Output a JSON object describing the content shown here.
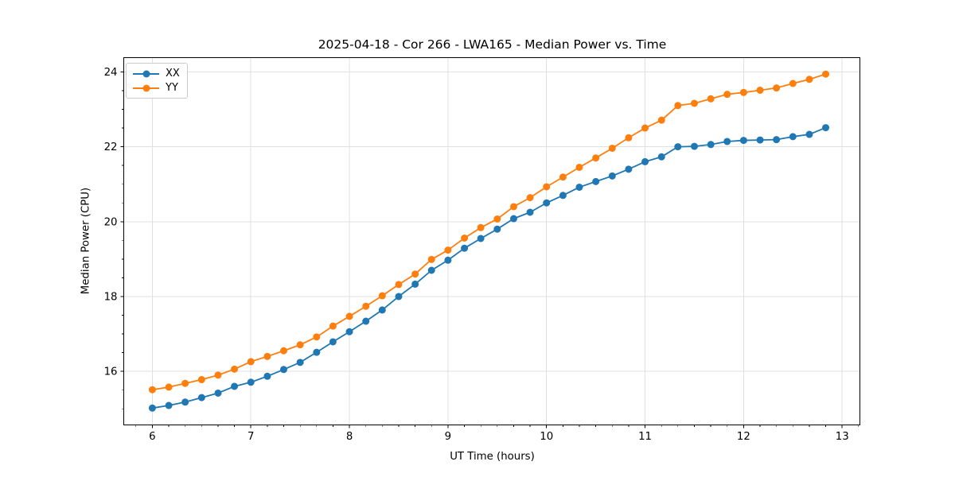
{
  "figure": {
    "background": "#ffffff"
  },
  "chart_data": {
    "type": "line",
    "title": "2025-04-18 - Cor 266 - LWA165 - Median Power vs. Time",
    "xlabel": "UT Time (hours)",
    "ylabel": "Median Power (CPU)",
    "xlim": [
      5.71,
      13.18
    ],
    "ylim": [
      14.57,
      24.38
    ],
    "xticks": [
      6,
      7,
      8,
      9,
      10,
      11,
      12,
      13
    ],
    "yticks": [
      16,
      18,
      20,
      22,
      24
    ],
    "x_minor_step": 0.16667,
    "y_minor_step": 0.5,
    "grid": "major",
    "grid_color": "#e0e0e0",
    "axis_color": "#000000",
    "legend": {
      "position": "upper-left",
      "entries": [
        "XX",
        "YY"
      ]
    },
    "x": [
      6.0,
      6.167,
      6.333,
      6.5,
      6.667,
      6.833,
      7.0,
      7.167,
      7.333,
      7.5,
      7.667,
      7.833,
      8.0,
      8.167,
      8.333,
      8.5,
      8.667,
      8.833,
      9.0,
      9.167,
      9.333,
      9.5,
      9.667,
      9.833,
      10.0,
      10.167,
      10.333,
      10.5,
      10.667,
      10.833,
      11.0,
      11.167,
      11.333,
      11.5,
      11.667,
      11.833,
      12.0,
      12.167,
      12.333,
      12.5,
      12.667,
      12.833
    ],
    "series": [
      {
        "name": "XX",
        "color": "#1f77b4",
        "marker": "circle",
        "values": [
          15.02,
          15.09,
          15.18,
          15.3,
          15.42,
          15.6,
          15.71,
          15.87,
          16.05,
          16.24,
          16.51,
          16.79,
          17.06,
          17.34,
          17.64,
          18.0,
          18.33,
          18.7,
          18.97,
          19.29,
          19.55,
          19.8,
          20.08,
          20.25,
          20.5,
          20.7,
          20.92,
          21.07,
          21.22,
          21.4,
          21.6,
          21.73,
          22.0,
          22.01,
          22.06,
          22.14,
          22.17,
          22.18,
          22.19,
          22.27,
          22.33,
          22.51
        ]
      },
      {
        "name": "YY",
        "color": "#ff7f0e",
        "marker": "circle",
        "values": [
          15.51,
          15.58,
          15.68,
          15.78,
          15.9,
          16.06,
          16.26,
          16.4,
          16.55,
          16.71,
          16.92,
          17.21,
          17.47,
          17.74,
          18.02,
          18.32,
          18.6,
          18.99,
          19.24,
          19.56,
          19.84,
          20.07,
          20.4,
          20.64,
          20.93,
          21.19,
          21.45,
          21.7,
          21.96,
          22.24,
          22.5,
          22.71,
          23.1,
          23.16,
          23.28,
          23.4,
          23.45,
          23.51,
          23.57,
          23.69,
          23.8,
          23.94
        ]
      }
    ]
  }
}
